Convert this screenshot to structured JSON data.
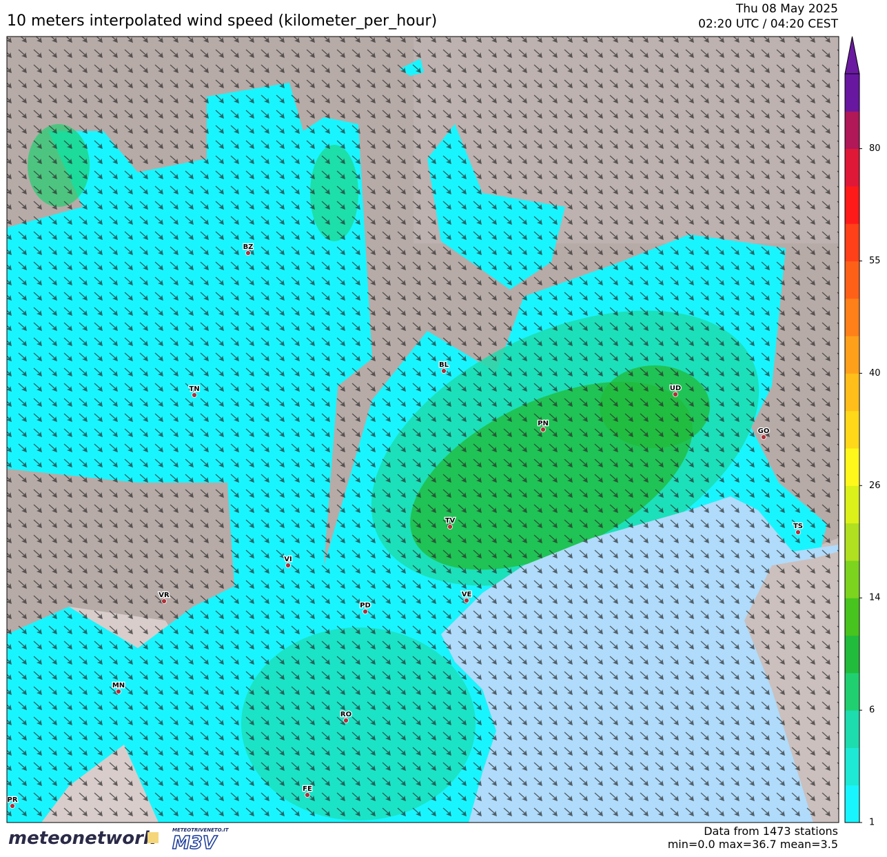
{
  "header": {
    "title": "10 meters interpolated wind speed (kilometer_per_hour)",
    "date": "Thu 08 May 2025",
    "time": "02:20 UTC / 04:20 CEST"
  },
  "cities": [
    "BZ",
    "TN",
    "BL",
    "UD",
    "PN",
    "GO",
    "TV",
    "VI",
    "VR",
    "PD",
    "VE",
    "MN",
    "RO",
    "TS",
    "FE",
    "PR"
  ],
  "colorbar": {
    "ticks": [
      1,
      6,
      14,
      26,
      40,
      55,
      80
    ],
    "colors": [
      "#19f5ff",
      "#1de9d4",
      "#1ddcae",
      "#20d070",
      "#22bc3c",
      "#48c41e",
      "#7cd41e",
      "#b0e020",
      "#dcf01a",
      "#fff81a",
      "#ffd81a",
      "#ffbe1a",
      "#ffa01a",
      "#ff8018",
      "#ff6018",
      "#ff4018",
      "#ff1a1a",
      "#e01838",
      "#b01858",
      "#6818a0"
    ],
    "extend_color": "#6a1aa0"
  },
  "footer": {
    "stations": "Data from 1473 stations",
    "stats": "min=0.0 max=36.7 mean=3.5",
    "logo1": "meteonetwork",
    "logo2_small": "METEOTRIVENETO.IT",
    "logo2": "M3V"
  }
}
